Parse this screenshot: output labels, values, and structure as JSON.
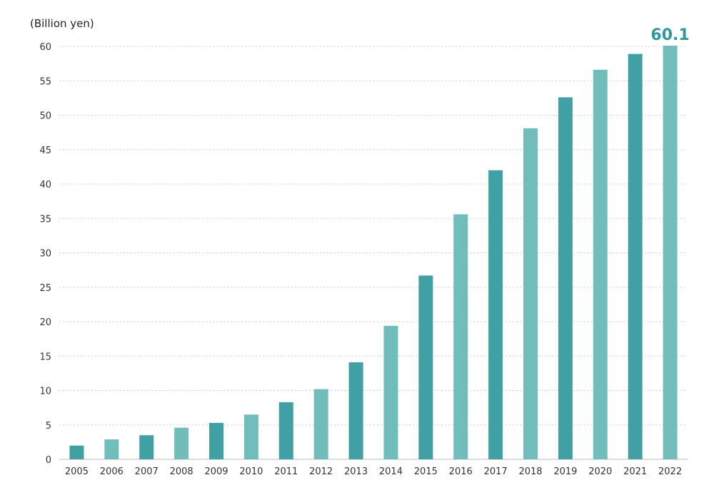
{
  "chart_data": {
    "type": "bar",
    "ylabel": "(Billion yen)",
    "categories": [
      "2005",
      "2006",
      "2007",
      "2008",
      "2009",
      "2010",
      "2011",
      "2012",
      "2013",
      "2014",
      "2015",
      "2016",
      "2017",
      "2018",
      "2019",
      "2020",
      "2021",
      "2022"
    ],
    "values": [
      2.0,
      2.9,
      3.5,
      4.6,
      5.3,
      6.5,
      8.3,
      10.2,
      14.1,
      19.4,
      26.7,
      35.6,
      42.0,
      48.1,
      52.6,
      56.6,
      58.9,
      60.1
    ],
    "ylim": [
      0,
      60
    ],
    "yticks": [
      0,
      5,
      10,
      15,
      20,
      25,
      30,
      35,
      40,
      45,
      50,
      55,
      60
    ],
    "grid": true,
    "colors": {
      "dark": "#40a0a4",
      "light": "#71bdbb",
      "annotation": "#2f9a99"
    },
    "bar_color_pattern": [
      "dark",
      "light",
      "dark",
      "light",
      "dark",
      "light",
      "dark",
      "light",
      "dark",
      "light",
      "dark",
      "light",
      "dark",
      "light",
      "dark",
      "light",
      "dark",
      "light"
    ],
    "annotation": {
      "text": "60.1",
      "category": "2022"
    }
  }
}
